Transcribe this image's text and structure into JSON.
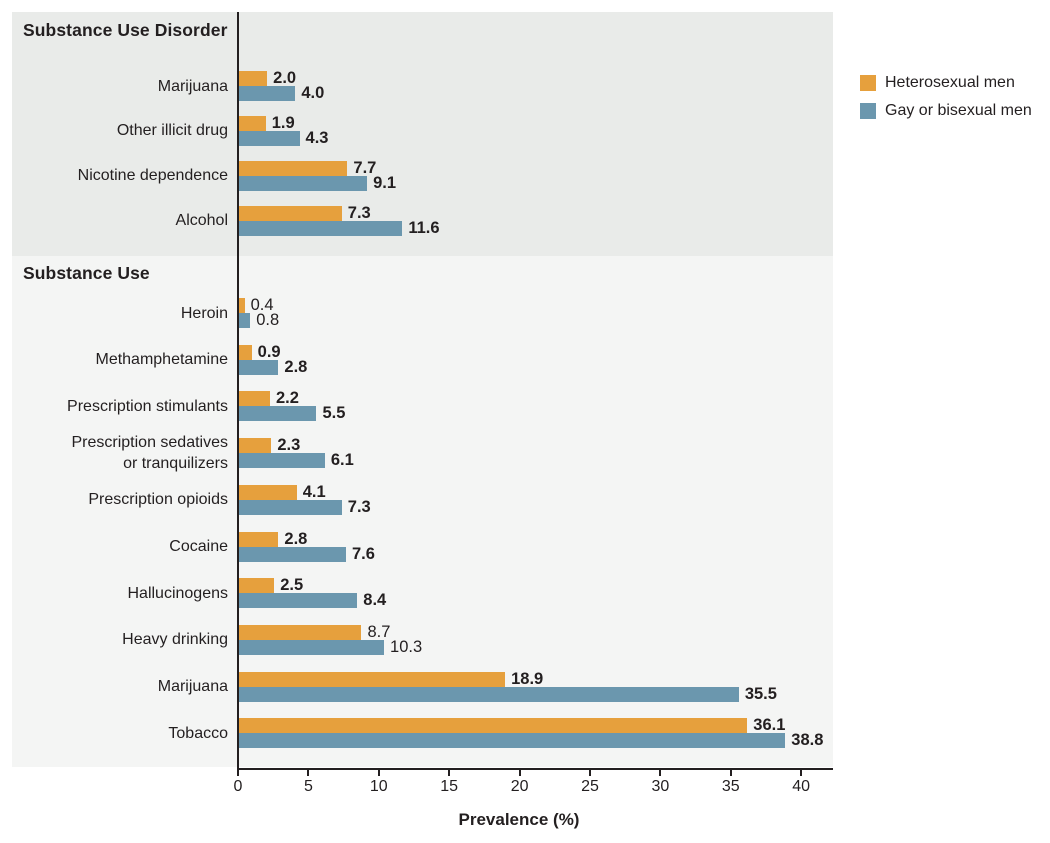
{
  "figure": {
    "background": "#ffffff",
    "panel_top_bg": "#e9ebe9",
    "panel_bottom_bg": "#f4f5f4",
    "text_color": "#231f20",
    "axis_color": "#231f20"
  },
  "chart_data": {
    "type": "bar",
    "orientation": "horizontal",
    "title": "",
    "xlabel": "Prevalence (%)",
    "ylabel": "",
    "xlim": [
      0,
      40
    ],
    "xticks": [
      0,
      5,
      10,
      15,
      20,
      25,
      30,
      35,
      40
    ],
    "grid": false,
    "legend_position": "top-right-outside",
    "series_names": [
      "Heterosexual men",
      "Gay or bisexual men"
    ],
    "series_colors": [
      "#e6a03d",
      "#6b97ae"
    ],
    "sections": [
      {
        "header": "Substance Use Disorder",
        "rows": [
          {
            "label": "Marijuana",
            "values": [
              2.0,
              4.0
            ],
            "display": [
              "2.0",
              "4.0"
            ],
            "bold_values": true
          },
          {
            "label": "Other illicit drug",
            "values": [
              1.9,
              4.3
            ],
            "display": [
              "1.9",
              "4.3"
            ],
            "bold_values": true
          },
          {
            "label": "Nicotine dependence",
            "values": [
              7.7,
              9.1
            ],
            "display": [
              "7.7",
              "9.1"
            ],
            "bold_values": true
          },
          {
            "label": "Alcohol",
            "values": [
              7.3,
              11.6
            ],
            "display": [
              "7.3",
              "11.6"
            ],
            "bold_values": true
          }
        ]
      },
      {
        "header": "Substance Use",
        "rows": [
          {
            "label": "Heroin",
            "values": [
              0.4,
              0.8
            ],
            "display": [
              "0.4",
              "0.8"
            ],
            "bold_values": false
          },
          {
            "label": "Methamphetamine",
            "values": [
              0.9,
              2.8
            ],
            "display": [
              "0.9",
              "2.8"
            ],
            "bold_values": true
          },
          {
            "label": "Prescription stimulants",
            "values": [
              2.2,
              5.5
            ],
            "display": [
              "2.2",
              "5.5"
            ],
            "bold_values": true
          },
          {
            "label": "Prescription sedatives or tranquilizers",
            "label_lines": [
              "Prescription sedatives",
              "or tranquilizers"
            ],
            "values": [
              2.3,
              6.1
            ],
            "display": [
              "2.3",
              "6.1"
            ],
            "bold_values": true
          },
          {
            "label": "Prescription opioids",
            "values": [
              4.1,
              7.3
            ],
            "display": [
              "4.1",
              "7.3"
            ],
            "bold_values": true
          },
          {
            "label": "Cocaine",
            "values": [
              2.8,
              7.6
            ],
            "display": [
              "2.8",
              "7.6"
            ],
            "bold_values": true
          },
          {
            "label": "Hallucinogens",
            "values": [
              2.5,
              8.4
            ],
            "display": [
              "2.5",
              "8.4"
            ],
            "bold_values": true
          },
          {
            "label": "Heavy drinking",
            "values": [
              8.7,
              10.3
            ],
            "display": [
              "8.7",
              "10.3"
            ],
            "bold_values": false
          },
          {
            "label": "Marijuana",
            "values": [
              18.9,
              35.5
            ],
            "display": [
              "18.9",
              "35.5"
            ],
            "bold_values": true
          },
          {
            "label": "Tobacco",
            "values": [
              36.1,
              38.8
            ],
            "display": [
              "36.1",
              "38.8"
            ],
            "bold_values": true
          }
        ]
      }
    ]
  }
}
